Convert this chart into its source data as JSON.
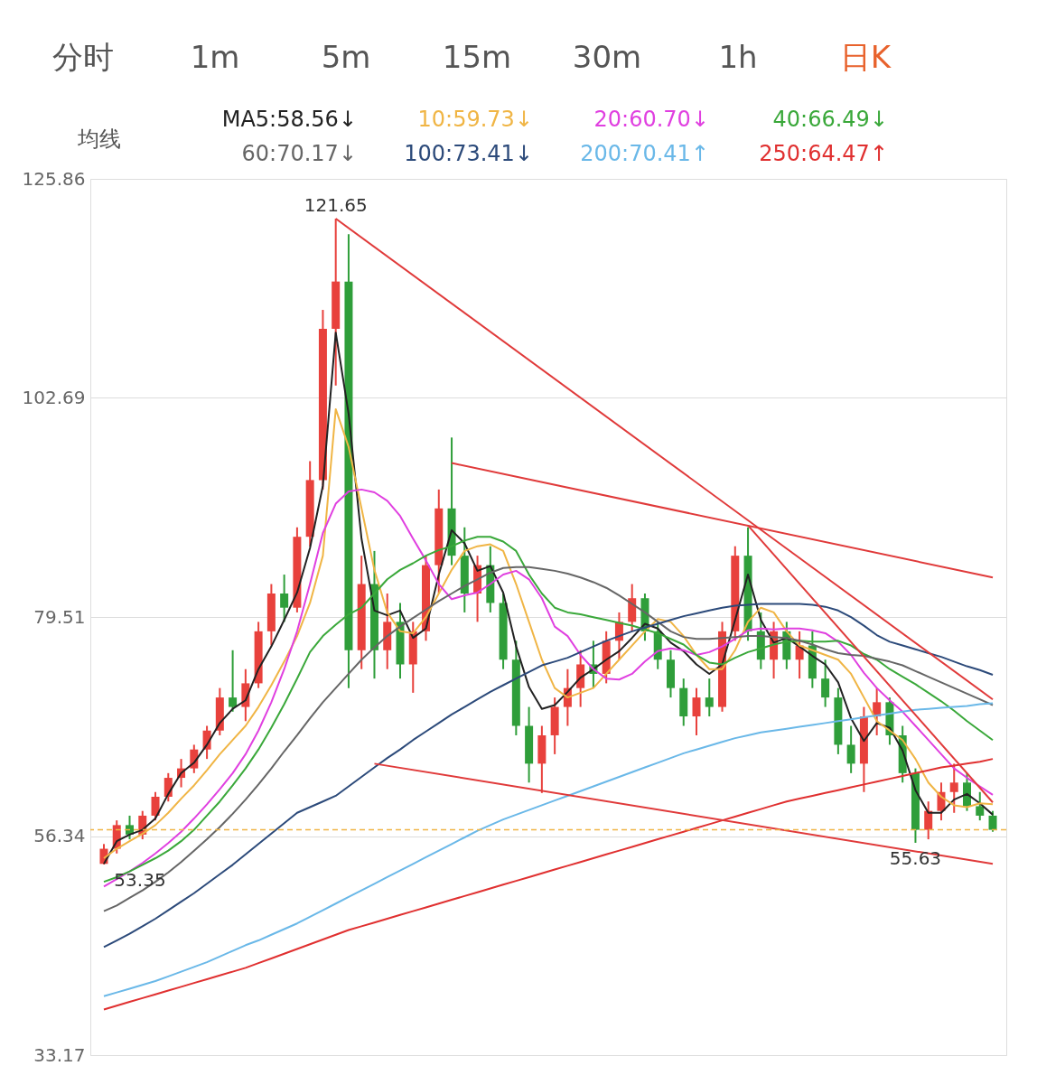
{
  "chart_data": {
    "type": "candlestick",
    "categories": [
      null,
      null,
      null,
      null,
      null,
      null,
      null,
      null,
      null,
      null,
      null,
      null,
      null,
      null,
      null,
      null,
      null,
      null,
      null,
      null,
      null,
      null,
      null,
      null,
      null,
      null,
      null,
      null,
      null,
      null,
      null,
      null,
      null,
      null,
      null,
      null,
      null,
      null,
      null,
      null,
      null,
      null,
      null,
      null,
      null,
      null,
      null,
      null,
      null,
      null,
      null,
      null,
      null,
      null,
      null,
      null,
      null,
      null,
      null,
      null,
      null,
      null,
      null,
      null,
      null,
      null,
      null,
      null,
      null,
      null
    ],
    "ohlc": [
      [
        53.4,
        55.5,
        53.35,
        55.0
      ],
      [
        55,
        58,
        54.5,
        57.5
      ],
      [
        57.5,
        58.5,
        56,
        56.5
      ],
      [
        56.5,
        59,
        56,
        58.5
      ],
      [
        58.5,
        61,
        58,
        60.5
      ],
      [
        60.5,
        63,
        60,
        62.5
      ],
      [
        62.5,
        64.5,
        61.5,
        63.5
      ],
      [
        63.5,
        66,
        63,
        65.5
      ],
      [
        65.5,
        68,
        64.5,
        67.5
      ],
      [
        67.5,
        72,
        67,
        71
      ],
      [
        71,
        76,
        69.5,
        70
      ],
      [
        70,
        74,
        68.5,
        72.5
      ],
      [
        72.5,
        79,
        72,
        78
      ],
      [
        78,
        83,
        76.5,
        82
      ],
      [
        82,
        84,
        79,
        80.5
      ],
      [
        80.5,
        89,
        80,
        88
      ],
      [
        88,
        96,
        87,
        94
      ],
      [
        94,
        112,
        93,
        110
      ],
      [
        110,
        121.65,
        104,
        115
      ],
      [
        115,
        120,
        72,
        76
      ],
      [
        76,
        86,
        74,
        83
      ],
      [
        83,
        86.5,
        73,
        76
      ],
      [
        76,
        82,
        74,
        79
      ],
      [
        79,
        81,
        73,
        74.5
      ],
      [
        74.5,
        79,
        71.5,
        78
      ],
      [
        78,
        86,
        77,
        85
      ],
      [
        85,
        93,
        82,
        91
      ],
      [
        91,
        98.5,
        85,
        86
      ],
      [
        86,
        89,
        80,
        82
      ],
      [
        82,
        86,
        79,
        85
      ],
      [
        85,
        87,
        80,
        81
      ],
      [
        81,
        82,
        74,
        75
      ],
      [
        75,
        77,
        67,
        68
      ],
      [
        68,
        70,
        62,
        64
      ],
      [
        64,
        68,
        60.9,
        67
      ],
      [
        67,
        71,
        65,
        70
      ],
      [
        70,
        74,
        68,
        72
      ],
      [
        72,
        76,
        70,
        74.5
      ],
      [
        74.5,
        77,
        72,
        73.5
      ],
      [
        73.5,
        78,
        72.5,
        77
      ],
      [
        77,
        80,
        75,
        79
      ],
      [
        79,
        83,
        78,
        81.5
      ],
      [
        81.5,
        82,
        77,
        78
      ],
      [
        78,
        79,
        74,
        75
      ],
      [
        75,
        76,
        71,
        72
      ],
      [
        72,
        73,
        68,
        69
      ],
      [
        69,
        72,
        67,
        71
      ],
      [
        71,
        73,
        69,
        70
      ],
      [
        70,
        79,
        69.5,
        78
      ],
      [
        78,
        87,
        77,
        86
      ],
      [
        86,
        89,
        77,
        78
      ],
      [
        78,
        80,
        74,
        75
      ],
      [
        75,
        79,
        73,
        78
      ],
      [
        78,
        79,
        74,
        75
      ],
      [
        75,
        78,
        73,
        76.5
      ],
      [
        76.5,
        78,
        72,
        73
      ],
      [
        73,
        75,
        70,
        71
      ],
      [
        71,
        72,
        65,
        66
      ],
      [
        66,
        68,
        63,
        64
      ],
      [
        64,
        70,
        61,
        69
      ],
      [
        69,
        72,
        67,
        70.5
      ],
      [
        70.5,
        71,
        66,
        67
      ],
      [
        67,
        68,
        62,
        63
      ],
      [
        63,
        63.5,
        55.63,
        57
      ],
      [
        57,
        60,
        56,
        59
      ],
      [
        59,
        62,
        58,
        61
      ],
      [
        61,
        64,
        58.8,
        62
      ],
      [
        62,
        63,
        59,
        59.5
      ],
      [
        59.5,
        61,
        58,
        58.5
      ],
      [
        58.5,
        59,
        56.8,
        57.0
      ]
    ],
    "colors": [
      "#e8413c",
      "#e8413c",
      "#2f9e3a",
      "#e8413c",
      "#e8413c",
      "#e8413c",
      "#e8413c",
      "#e8413c",
      "#e8413c",
      "#e8413c",
      "#2f9e3a",
      "#e8413c",
      "#e8413c",
      "#e8413c",
      "#2f9e3a",
      "#e8413c",
      "#e8413c",
      "#e8413c",
      "#e8413c",
      "#2f9e3a",
      "#e8413c",
      "#2f9e3a",
      "#e8413c",
      "#2f9e3a",
      "#e8413c",
      "#e8413c",
      "#e8413c",
      "#2f9e3a",
      "#2f9e3a",
      "#e8413c",
      "#2f9e3a",
      "#2f9e3a",
      "#2f9e3a",
      "#2f9e3a",
      "#e8413c",
      "#e8413c",
      "#e8413c",
      "#e8413c",
      "#2f9e3a",
      "#e8413c",
      "#e8413c",
      "#e8413c",
      "#2f9e3a",
      "#2f9e3a",
      "#2f9e3a",
      "#2f9e3a",
      "#e8413c",
      "#2f9e3a",
      "#e8413c",
      "#e8413c",
      "#2f9e3a",
      "#2f9e3a",
      "#e8413c",
      "#2f9e3a",
      "#e8413c",
      "#2f9e3a",
      "#2f9e3a",
      "#2f9e3a",
      "#2f9e3a",
      "#e8413c",
      "#e8413c",
      "#2f9e3a",
      "#2f9e3a",
      "#2f9e3a",
      "#e8413c",
      "#e8413c",
      "#e8413c",
      "#2f9e3a",
      "#2f9e3a",
      "#2f9e3a"
    ],
    "series": [
      {
        "name": "MA5:58.56↓",
        "type": "line",
        "color": "#222222",
        "values": [
          53.4,
          55.8,
          56.5,
          57.0,
          58.2,
          60.8,
          63.0,
          64.1,
          66.0,
          68.3,
          69.8,
          70.7,
          74.0,
          76.4,
          79.2,
          82.1,
          86.8,
          93.4,
          109.6,
          101.0,
          87.8,
          80.2,
          79.7,
          80.2,
          77.3,
          78.3,
          84.0,
          88.7,
          87.3,
          84.4,
          84.9,
          82.1,
          76.4,
          72.1,
          69.8,
          70.2,
          71.6,
          73.1,
          74.0,
          75.0,
          75.9,
          77.3,
          78.8,
          78.3,
          76.8,
          75.9,
          74.5,
          73.5,
          74.5,
          79.2,
          84.0,
          79.2,
          76.8,
          77.3,
          76.4,
          75.4,
          74.5,
          72.6,
          68.8,
          66.4,
          68.3,
          67.8,
          65.4,
          61.2,
          58.8,
          58.8,
          60.2,
          60.8,
          59.8,
          58.6
        ]
      },
      {
        "name": "10:59.73↓",
        "type": "line",
        "color": "#f0b545",
        "values": [
          54.0,
          55.0,
          55.8,
          56.6,
          57.5,
          58.8,
          60.3,
          61.7,
          63.3,
          65.0,
          66.5,
          68.0,
          70.0,
          72.3,
          74.8,
          77.5,
          81.0,
          86.0,
          101.5,
          97.5,
          91.0,
          84.5,
          80.0,
          78.0,
          77.8,
          79.5,
          82.0,
          84.5,
          86.5,
          87.0,
          87.2,
          86.5,
          83.0,
          79.0,
          75.0,
          72.0,
          71.0,
          71.5,
          72.0,
          73.5,
          75.0,
          76.5,
          78.0,
          79.3,
          79.0,
          77.5,
          75.5,
          74.0,
          74.0,
          76.0,
          79.0,
          80.5,
          80.0,
          78.0,
          76.5,
          76.0,
          75.5,
          75.0,
          73.5,
          71.0,
          68.5,
          67.5,
          66.5,
          64.5,
          62.0,
          60.5,
          59.6,
          59.4,
          59.8,
          59.7
        ]
      },
      {
        "name": "20:60.70↓",
        "type": "line",
        "color": "#e040e0",
        "values": [
          51.0,
          51.8,
          52.6,
          53.5,
          54.5,
          55.6,
          56.8,
          58.2,
          59.7,
          61.3,
          63.0,
          65.0,
          67.5,
          70.5,
          74.0,
          78.0,
          83.0,
          88.4,
          91.5,
          92.8,
          93.0,
          92.7,
          91.8,
          90.2,
          87.8,
          85.5,
          83.0,
          81.4,
          81.8,
          82.1,
          83.0,
          84.0,
          84.4,
          83.5,
          81.5,
          78.5,
          77.5,
          75.5,
          74.0,
          73.0,
          72.9,
          73.5,
          74.8,
          75.9,
          76.2,
          76.0,
          75.5,
          75.8,
          76.4,
          77.2,
          78.1,
          78.3,
          78.2,
          78.3,
          78.3,
          78.1,
          77.8,
          76.9,
          75.5,
          73.6,
          72.0,
          70.7,
          69.5,
          68.0,
          66.5,
          65.0,
          63.5,
          62.5,
          61.6,
          60.7
        ]
      },
      {
        "name": "40:66.49↓",
        "type": "line",
        "color": "#3aa83a",
        "values": [
          51.5,
          52.0,
          52.6,
          53.3,
          54.0,
          54.8,
          55.8,
          57.0,
          58.5,
          60.0,
          61.7,
          63.5,
          65.5,
          67.8,
          70.3,
          73.0,
          75.8,
          77.5,
          78.7,
          79.8,
          80.5,
          82.0,
          83.5,
          84.5,
          85.2,
          86.0,
          86.6,
          87.0,
          87.6,
          88.0,
          88.0,
          87.5,
          86.5,
          84.0,
          82.0,
          80.5,
          80.0,
          79.8,
          79.5,
          79.2,
          78.9,
          78.6,
          78.2,
          77.8,
          77.2,
          76.6,
          75.5,
          74.7,
          74.5,
          75.2,
          75.8,
          76.2,
          76.6,
          76.9,
          77.0,
          76.9,
          76.9,
          77.0,
          76.5,
          75.6,
          75.0,
          74.0,
          73.2,
          72.4,
          71.5,
          70.6,
          69.6,
          68.5,
          67.5,
          66.5
        ]
      },
      {
        "name": "60:70.17↓",
        "type": "line",
        "color": "#666666",
        "values": [
          48.4,
          49.0,
          49.8,
          50.6,
          51.5,
          52.5,
          53.6,
          54.8,
          56.0,
          57.3,
          58.7,
          60.2,
          61.8,
          63.5,
          65.3,
          67.0,
          68.8,
          70.5,
          72.0,
          73.5,
          75.0,
          76.3,
          77.5,
          78.5,
          79.4,
          80.3,
          81.2,
          82.0,
          82.8,
          83.5,
          84.2,
          84.7,
          84.8,
          84.8,
          84.6,
          84.4,
          84.1,
          83.7,
          83.2,
          82.6,
          81.8,
          80.9,
          80.0,
          79.0,
          78.0,
          77.4,
          77.2,
          77.2,
          77.3,
          77.4,
          77.5,
          77.5,
          77.4,
          77.3,
          77.0,
          76.6,
          76.1,
          75.7,
          75.5,
          75.4,
          75.1,
          74.8,
          74.4,
          73.8,
          73.2,
          72.6,
          72.0,
          71.4,
          70.8,
          70.2
        ]
      },
      {
        "name": "100:73.41↓",
        "type": "line",
        "color": "#2c4a7a",
        "values": [
          44.6,
          45.3,
          46.0,
          46.8,
          47.6,
          48.5,
          49.4,
          50.3,
          51.3,
          52.3,
          53.3,
          54.4,
          55.5,
          56.6,
          57.7,
          58.8,
          59.4,
          60.0,
          60.6,
          61.6,
          62.6,
          63.6,
          64.6,
          65.5,
          66.5,
          67.4,
          68.3,
          69.2,
          70.0,
          70.8,
          71.6,
          72.3,
          73.0,
          73.7,
          74.4,
          74.8,
          75.2,
          75.8,
          76.4,
          77.0,
          77.5,
          78.0,
          78.4,
          78.8,
          79.2,
          79.6,
          79.9,
          80.2,
          80.5,
          80.7,
          80.8,
          80.9,
          80.9,
          80.9,
          80.9,
          80.8,
          80.6,
          80.2,
          79.5,
          78.6,
          77.6,
          76.9,
          76.5,
          76.1,
          75.7,
          75.3,
          74.8,
          74.3,
          73.9,
          73.4
        ]
      },
      {
        "name": "200:70.41↑",
        "type": "line",
        "color": "#6ab8e8",
        "values": [
          39.4,
          39.8,
          40.2,
          40.6,
          41.0,
          41.5,
          42.0,
          42.5,
          43.0,
          43.6,
          44.2,
          44.8,
          45.3,
          45.9,
          46.5,
          47.1,
          47.8,
          48.5,
          49.2,
          49.9,
          50.6,
          51.3,
          52.0,
          52.7,
          53.4,
          54.1,
          54.8,
          55.5,
          56.2,
          56.9,
          57.5,
          58.1,
          58.6,
          59.1,
          59.6,
          60.1,
          60.6,
          61.1,
          61.6,
          62.1,
          62.6,
          63.1,
          63.6,
          64.1,
          64.6,
          65.1,
          65.5,
          65.9,
          66.3,
          66.7,
          67.0,
          67.3,
          67.5,
          67.7,
          67.9,
          68.1,
          68.3,
          68.5,
          68.7,
          68.9,
          69.1,
          69.3,
          69.5,
          69.7,
          69.8,
          69.9,
          70.0,
          70.1,
          70.3,
          70.4
        ]
      },
      {
        "name": "250:64.47↑",
        "type": "line",
        "color": "#e03030",
        "values": [
          38.0,
          38.4,
          38.8,
          39.2,
          39.6,
          40.0,
          40.4,
          40.8,
          41.2,
          41.6,
          42.0,
          42.4,
          42.9,
          43.4,
          43.9,
          44.4,
          44.9,
          45.4,
          45.9,
          46.4,
          46.8,
          47.2,
          47.6,
          48.0,
          48.4,
          48.8,
          49.2,
          49.6,
          50.0,
          50.4,
          50.8,
          51.2,
          51.6,
          52.0,
          52.4,
          52.8,
          53.2,
          53.6,
          54.0,
          54.4,
          54.8,
          55.2,
          55.6,
          56.0,
          56.4,
          56.8,
          57.2,
          57.6,
          58.0,
          58.4,
          58.8,
          59.2,
          59.6,
          60.0,
          60.3,
          60.6,
          60.9,
          61.2,
          61.5,
          61.8,
          62.1,
          62.4,
          62.7,
          63.0,
          63.3,
          63.6,
          63.8,
          64.0,
          64.2,
          64.5
        ]
      },
      {
        "type": "line",
        "color": "#e03a3a",
        "values": [
          null,
          null,
          null,
          null,
          null,
          null,
          null,
          null,
          null,
          null,
          null,
          null,
          null,
          null,
          null,
          null,
          null,
          null,
          121.65,
          null,
          null,
          null,
          null,
          null,
          null,
          null,
          null,
          null,
          null,
          null,
          null,
          null,
          null,
          null,
          null,
          null,
          null,
          null,
          null,
          null,
          null,
          null,
          null,
          null,
          null,
          null,
          null,
          null,
          null,
          null,
          null,
          null,
          null,
          null,
          null,
          null,
          null,
          null,
          null,
          null,
          null,
          null,
          null,
          null,
          null,
          null,
          null,
          null,
          null,
          70.8
        ]
      },
      {
        "type": "line",
        "color": "#e03a3a",
        "values": [
          null,
          null,
          null,
          null,
          null,
          null,
          null,
          null,
          null,
          null,
          null,
          null,
          null,
          null,
          null,
          null,
          null,
          null,
          null,
          null,
          null,
          null,
          null,
          null,
          null,
          null,
          null,
          95.8,
          null,
          null,
          null,
          null,
          null,
          null,
          null,
          null,
          null,
          null,
          null,
          null,
          null,
          null,
          null,
          null,
          null,
          null,
          null,
          null,
          null,
          null,
          null,
          null,
          null,
          null,
          null,
          null,
          null,
          null,
          null,
          null,
          null,
          null,
          null,
          null,
          null,
          null,
          null,
          null,
          null,
          83.7
        ]
      },
      {
        "type": "line",
        "color": "#e03a3a",
        "values": [
          null,
          null,
          null,
          null,
          null,
          null,
          null,
          null,
          null,
          null,
          null,
          null,
          null,
          null,
          null,
          null,
          null,
          null,
          null,
          null,
          null,
          null,
          null,
          null,
          null,
          null,
          null,
          null,
          null,
          null,
          null,
          null,
          null,
          null,
          null,
          null,
          null,
          null,
          null,
          null,
          null,
          null,
          null,
          null,
          null,
          null,
          null,
          null,
          null,
          null,
          89.2,
          null,
          null,
          null,
          null,
          null,
          null,
          null,
          null,
          null,
          null,
          null,
          null,
          null,
          null,
          null,
          null,
          null,
          null,
          59.9
        ]
      },
      {
        "type": "line",
        "color": "#e03a3a",
        "values": [
          null,
          null,
          null,
          null,
          null,
          null,
          null,
          null,
          null,
          null,
          null,
          null,
          null,
          null,
          null,
          null,
          null,
          null,
          null,
          null,
          null,
          64.0,
          null,
          null,
          null,
          null,
          null,
          null,
          null,
          null,
          null,
          null,
          null,
          null,
          null,
          null,
          null,
          null,
          null,
          null,
          null,
          null,
          null,
          null,
          null,
          null,
          null,
          null,
          null,
          null,
          null,
          null,
          null,
          null,
          null,
          null,
          null,
          null,
          null,
          null,
          null,
          null,
          null,
          null,
          null,
          null,
          null,
          null,
          null,
          53.4
        ]
      }
    ],
    "ylim": [
      33.17,
      125.86
    ],
    "yticks": [
      33.17,
      56.34,
      79.51,
      102.69,
      125.86
    ],
    "grid": "y",
    "tick_labels": "y",
    "legend": "top",
    "ref_lines": [
      {
        "axis": "y",
        "value": 57.0,
        "color": "#f0b545",
        "line_style": "dashed"
      }
    ],
    "annotations": [
      "分时",
      "1m",
      "5m",
      "15m",
      "30m",
      "1h",
      "日K",
      "均线",
      {
        "text": "121.65",
        "y": 121.65
      },
      {
        "text": "53.35",
        "y": 53.35
      },
      {
        "text": "55.63",
        "y": 55.63
      }
    ]
  }
}
